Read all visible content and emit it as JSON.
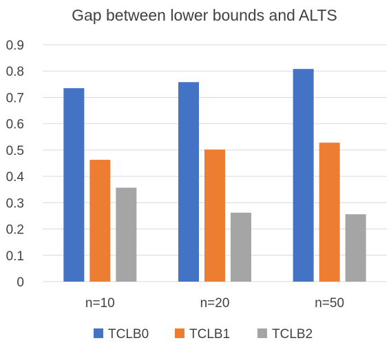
{
  "chart_data": {
    "type": "bar",
    "title": "Gap between lower bounds and ALTS",
    "xlabel": "",
    "ylabel": "",
    "categories": [
      "n=10",
      "n=20",
      "n=50"
    ],
    "series": [
      {
        "name": "TCLB0",
        "color": "#4472C4",
        "values": [
          0.735,
          0.758,
          0.808
        ]
      },
      {
        "name": "TCLB1",
        "color": "#ED7D31",
        "values": [
          0.463,
          0.502,
          0.528
        ]
      },
      {
        "name": "TCLB2",
        "color": "#A5A5A5",
        "values": [
          0.357,
          0.262,
          0.256
        ]
      }
    ],
    "ylim": [
      0,
      0.9
    ],
    "yticks": [
      "0",
      "0.1",
      "0.2",
      "0.3",
      "0.4",
      "0.5",
      "0.6",
      "0.7",
      "0.8",
      "0.9"
    ],
    "grid": true,
    "legend_position": "bottom"
  }
}
